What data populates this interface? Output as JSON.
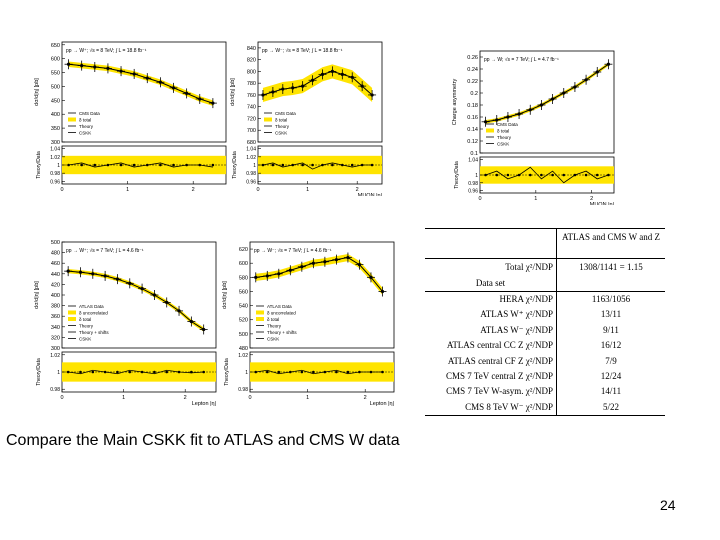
{
  "caption": "Compare the Main CSKK fit to ATLAS and CMS W data",
  "page_number": "24",
  "colors": {
    "band": "#ffe400",
    "line": "#000000",
    "accent": "#c0ff00"
  },
  "chart_data": [
    {
      "id": "p1",
      "type": "line",
      "title": "pp → W⁺; √s = 8 TeV; ∫ L = 18.8 fb⁻¹",
      "ylabel": "dσ/d|η| [pb]",
      "xlabel": "",
      "ylim": [
        300,
        660
      ],
      "xlim": [
        0,
        2.5
      ],
      "yticks": [
        "650",
        "600",
        "550",
        "500",
        "450",
        "400",
        "350",
        "300"
      ],
      "yticks_values": [
        650,
        600,
        550,
        500,
        450,
        400,
        350,
        300
      ],
      "legend": [
        "CMS Data",
        "δ total",
        "Theory",
        "CSKK"
      ],
      "x": [
        0.1,
        0.3,
        0.5,
        0.7,
        0.9,
        1.1,
        1.3,
        1.5,
        1.7,
        1.9,
        2.1,
        2.3
      ],
      "values": [
        580,
        575,
        570,
        565,
        555,
        545,
        530,
        515,
        495,
        475,
        455,
        440
      ],
      "band": 10,
      "ratio_yticks": [
        "1.04",
        "1.02",
        "1",
        "0.98",
        "0.96"
      ],
      "ratio_yticks_values": [
        1.04,
        1.02,
        1.0,
        0.98,
        0.96
      ],
      "ratio_ylabel": "Theory/Data",
      "ratio_values": [
        1.0,
        1.005,
        0.995,
        1.0,
        1.005,
        0.995,
        1.0,
        1.005,
        0.995,
        1.0,
        1.0,
        0.995
      ]
    },
    {
      "id": "p2",
      "type": "line",
      "title": "pp → W⁻; √s = 8 TeV; ∫ L = 18.8 fb⁻¹",
      "ylabel": "dσ/d|η| [pb]",
      "xlabel": "MUON |η|",
      "ylim": [
        680,
        850
      ],
      "xlim": [
        0,
        2.5
      ],
      "yticks": [
        "840",
        "820",
        "800",
        "780",
        "760",
        "740",
        "720",
        "700",
        "680"
      ],
      "yticks_values": [
        840,
        820,
        800,
        780,
        760,
        740,
        720,
        700,
        680
      ],
      "legend": [
        "CMS Data",
        "δ total",
        "Theory",
        "CSKK"
      ],
      "x": [
        0.1,
        0.3,
        0.5,
        0.7,
        0.9,
        1.1,
        1.3,
        1.5,
        1.7,
        1.9,
        2.1,
        2.3
      ],
      "values": [
        760,
        765,
        770,
        772,
        775,
        785,
        795,
        800,
        795,
        790,
        775,
        760
      ],
      "band": 12,
      "ratio_yticks": [
        "1.04",
        "1.02",
        "1",
        "0.98",
        "0.96"
      ],
      "ratio_yticks_values": [
        1.04,
        1.02,
        1.0,
        0.98,
        0.96
      ],
      "ratio_ylabel": "Theory/Data",
      "ratio_values": [
        1.0,
        1.005,
        0.995,
        1.0,
        1.005,
        0.99,
        1.0,
        1.005,
        1.0,
        0.995,
        1.0,
        1.0
      ]
    },
    {
      "id": "p3",
      "type": "line",
      "title": "pp → W; √s = 7 TeV; ∫ L = 4.7 fb⁻¹",
      "ylabel": "Charge asymmetry",
      "xlabel": "MUON |η|",
      "ylim": [
        0.1,
        0.27
      ],
      "xlim": [
        0,
        2.4
      ],
      "yticks": [
        "0.26",
        "0.24",
        "0.22",
        "0.2",
        "0.18",
        "0.16",
        "0.14",
        "0.12",
        "0.1"
      ],
      "yticks_values": [
        0.26,
        0.24,
        0.22,
        0.2,
        0.18,
        0.16,
        0.14,
        0.12,
        0.1
      ],
      "legend": [
        "CMS Data",
        "δ total",
        "Theory",
        "CSKK"
      ],
      "x": [
        0.1,
        0.3,
        0.5,
        0.7,
        0.9,
        1.1,
        1.3,
        1.5,
        1.7,
        1.9,
        2.1,
        2.3
      ],
      "values": [
        0.152,
        0.155,
        0.16,
        0.165,
        0.172,
        0.18,
        0.19,
        0.2,
        0.21,
        0.222,
        0.235,
        0.248
      ],
      "band": 0.003,
      "ratio_yticks": [
        "1.04",
        "1",
        "0.98",
        "0.96"
      ],
      "ratio_yticks_values": [
        1.04,
        1.0,
        0.98,
        0.96
      ],
      "ratio_ylabel": "Theory/Data",
      "ratio_values": [
        1.0,
        1.01,
        0.99,
        1.0,
        1.02,
        0.99,
        1.01,
        0.98,
        1.0,
        1.01,
        0.99,
        1.0
      ]
    },
    {
      "id": "p4",
      "type": "line",
      "title": "pp → W⁺; √s = 7 TeV; ∫ L = 4.6 fb⁻¹",
      "ylabel": "dσ/d|η| [pb]",
      "xlabel": "Lepton |η|",
      "ylim": [
        300,
        500
      ],
      "xlim": [
        0,
        2.5
      ],
      "yticks": [
        "500",
        "480",
        "460",
        "440",
        "420",
        "400",
        "380",
        "360",
        "340",
        "320",
        "300"
      ],
      "yticks_values": [
        500,
        480,
        460,
        440,
        420,
        400,
        380,
        360,
        340,
        320,
        300
      ],
      "legend": [
        "ATLAS Data",
        "δ uncorrelated",
        "δ total",
        "Theory",
        "Theory + shifts",
        "CSKK"
      ],
      "x": [
        0.1,
        0.3,
        0.5,
        0.7,
        0.9,
        1.1,
        1.3,
        1.5,
        1.7,
        1.9,
        2.1,
        2.3
      ],
      "values": [
        445,
        443,
        440,
        436,
        430,
        422,
        412,
        400,
        386,
        370,
        350,
        335
      ],
      "band": 4,
      "ratio_yticks": [
        "1.02",
        "1",
        "0.98"
      ],
      "ratio_yticks_values": [
        1.02,
        1.0,
        0.98
      ],
      "ratio_ylabel": "Theory/Data",
      "ratio_values": [
        1.0,
        0.998,
        1.002,
        1.0,
        0.998,
        1.002,
        1.0,
        0.998,
        1.002,
        1.0,
        0.999,
        1.0
      ]
    },
    {
      "id": "p5",
      "type": "line",
      "title": "pp → W⁻; √s = 7 TeV; ∫ L = 4.6 fb⁻¹",
      "ylabel": "dσ/d|η| [pb]",
      "xlabel": "Lepton |η|",
      "ylim": [
        480,
        630
      ],
      "xlim": [
        0,
        2.5
      ],
      "yticks": [
        "620",
        "600",
        "580",
        "560",
        "540",
        "520",
        "500",
        "480"
      ],
      "yticks_values": [
        620,
        600,
        580,
        560,
        540,
        520,
        500,
        480
      ],
      "legend": [
        "ATLAS Data",
        "δ uncorrelated",
        "δ total",
        "Theory",
        "Theory + shifts",
        "CSKK"
      ],
      "x": [
        0.1,
        0.3,
        0.5,
        0.7,
        0.9,
        1.1,
        1.3,
        1.5,
        1.7,
        1.9,
        2.1,
        2.3
      ],
      "values": [
        580,
        582,
        585,
        590,
        595,
        600,
        602,
        605,
        608,
        598,
        580,
        560
      ],
      "band": 5,
      "ratio_yticks": [
        "1.02",
        "1",
        "0.98"
      ],
      "ratio_yticks_values": [
        1.02,
        1.0,
        0.98
      ],
      "ratio_ylabel": "Theory/Data",
      "ratio_values": [
        1.0,
        1.002,
        0.998,
        1.0,
        1.002,
        0.998,
        1.0,
        1.002,
        0.998,
        1.0,
        1.0,
        1.0
      ]
    },
    {
      "type": "table",
      "header": [
        "",
        "ATLAS and CMS W and Z"
      ],
      "total_row": {
        "label": "Total χ²/NDP",
        "value": "1308/1141 = 1.15"
      },
      "section_label": "Data set",
      "rows": [
        {
          "label": "HERA χ²/NDP",
          "value": "1163/1056"
        },
        {
          "label": "ATLAS W⁺ χ²/NDP",
          "value": "13/11"
        },
        {
          "label": "ATLAS W⁻ χ²/NDP",
          "value": "9/11"
        },
        {
          "label": "ATLAS central CC Z χ²/NDP",
          "value": "16/12"
        },
        {
          "label": "ATLAS central CF Z χ²/NDP",
          "value": "7/9"
        },
        {
          "label": "CMS 7 TeV central Z χ²/NDP",
          "value": "12/24"
        },
        {
          "label": "CMS 7 TeV W-asym. χ²/NDP",
          "value": "14/11"
        },
        {
          "label": "CMS 8 TeV W⁻ χ²/NDP",
          "value": "5/22"
        }
      ]
    }
  ]
}
